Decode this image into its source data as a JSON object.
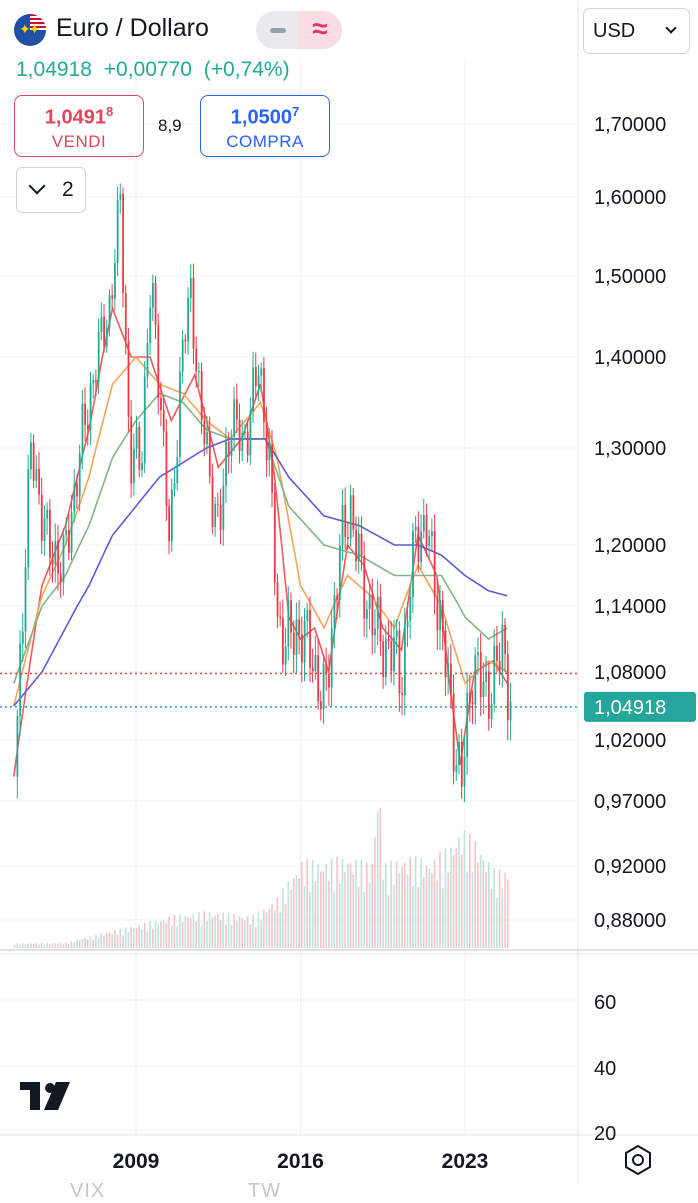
{
  "header": {
    "symbol_icon": "eu-us-flag-icon",
    "title": "Euro / Dollaro",
    "mode_toggle": {
      "left_icon": "line-mode-icon",
      "right_icon": "approx-wave-icon",
      "right_glyph": "≈"
    },
    "quote": {
      "last": "1,04918",
      "change": "+0,00770",
      "change_pct": "(+0,74%)"
    },
    "sell": {
      "price_main": "1,0491",
      "price_sup": "8",
      "label": "VENDI"
    },
    "spread": "8,9",
    "buy": {
      "price_main": "1,0500",
      "price_sup": "7",
      "label": "COMPRA"
    },
    "indicators_counter": "2"
  },
  "currency_select": {
    "value": "USD"
  },
  "colors": {
    "up": "#22ab94",
    "down": "#f23645",
    "ma_red": "#f05a5a",
    "ma_orange": "#f5a55a",
    "ma_green": "#7fb884",
    "ma_blue": "#5c5cd6",
    "last_label_bg": "#26a69a",
    "dotted_red": "#e04646",
    "dotted_teal": "#26a69a"
  },
  "chart_data": {
    "type": "candlestick",
    "pair": "EUR/USD",
    "price_axis_labels": [
      "1,70000",
      "1,60000",
      "1,50000",
      "1,40000",
      "1,30000",
      "1,20000",
      "1,14000",
      "1,08000",
      "1,02000",
      "0,97000",
      "0,92000",
      "0,88000"
    ],
    "price_axis_values": [
      1.7,
      1.6,
      1.5,
      1.4,
      1.3,
      1.2,
      1.14,
      1.08,
      1.02,
      0.97,
      0.92,
      0.88
    ],
    "last_price_label": "1,04918",
    "last_price": 1.04918,
    "ref_price": 1.0787,
    "x_axis_labels": [
      "2009",
      "2016",
      "2023"
    ],
    "x_axis_years": [
      2009,
      2016,
      2023
    ],
    "period": {
      "start": 2003.8,
      "end": 2024.9
    },
    "moving_averages": [
      {
        "color_key": "ma_red",
        "points": [
          [
            2003.8,
            0.99
          ],
          [
            2005,
            1.16
          ],
          [
            2006,
            1.22
          ],
          [
            2007,
            1.32
          ],
          [
            2008,
            1.46
          ],
          [
            2008.8,
            1.4
          ],
          [
            2009.6,
            1.4
          ],
          [
            2010.5,
            1.33
          ],
          [
            2011.5,
            1.38
          ],
          [
            2012.5,
            1.28
          ],
          [
            2013.5,
            1.31
          ],
          [
            2014.3,
            1.37
          ],
          [
            2014.9,
            1.27
          ],
          [
            2015.5,
            1.13
          ],
          [
            2016,
            1.11
          ],
          [
            2016.6,
            1.12
          ],
          [
            2017.2,
            1.08
          ],
          [
            2018,
            1.2
          ],
          [
            2018.7,
            1.18
          ],
          [
            2019.5,
            1.12
          ],
          [
            2020.3,
            1.1
          ],
          [
            2021,
            1.21
          ],
          [
            2021.8,
            1.17
          ],
          [
            2022.4,
            1.06
          ],
          [
            2022.8,
            1.0
          ],
          [
            2023.4,
            1.08
          ],
          [
            2024.2,
            1.09
          ],
          [
            2024.8,
            1.07
          ]
        ]
      },
      {
        "color_key": "ma_orange",
        "points": [
          [
            2003.8,
            1.05
          ],
          [
            2005,
            1.15
          ],
          [
            2006,
            1.2
          ],
          [
            2007,
            1.27
          ],
          [
            2008,
            1.37
          ],
          [
            2009,
            1.4
          ],
          [
            2010,
            1.37
          ],
          [
            2011,
            1.36
          ],
          [
            2012,
            1.33
          ],
          [
            2013,
            1.31
          ],
          [
            2014.3,
            1.35
          ],
          [
            2015,
            1.29
          ],
          [
            2016,
            1.16
          ],
          [
            2017,
            1.12
          ],
          [
            2018,
            1.17
          ],
          [
            2019,
            1.15
          ],
          [
            2020,
            1.12
          ],
          [
            2021,
            1.18
          ],
          [
            2022,
            1.14
          ],
          [
            2023,
            1.07
          ],
          [
            2024,
            1.09
          ],
          [
            2024.8,
            1.08
          ]
        ]
      },
      {
        "color_key": "ma_green",
        "points": [
          [
            2003.8,
            1.07
          ],
          [
            2005,
            1.14
          ],
          [
            2006,
            1.17
          ],
          [
            2007,
            1.22
          ],
          [
            2008,
            1.29
          ],
          [
            2009,
            1.33
          ],
          [
            2010,
            1.36
          ],
          [
            2011,
            1.35
          ],
          [
            2012,
            1.32
          ],
          [
            2013,
            1.31
          ],
          [
            2014.5,
            1.31
          ],
          [
            2015.5,
            1.24
          ],
          [
            2017,
            1.2
          ],
          [
            2018.5,
            1.19
          ],
          [
            2020,
            1.17
          ],
          [
            2021,
            1.17
          ],
          [
            2022,
            1.17
          ],
          [
            2023,
            1.13
          ],
          [
            2024,
            1.11
          ],
          [
            2024.8,
            1.12
          ]
        ]
      },
      {
        "color_key": "ma_blue",
        "points": [
          [
            2003.8,
            1.05
          ],
          [
            2005,
            1.08
          ],
          [
            2006,
            1.12
          ],
          [
            2007,
            1.16
          ],
          [
            2008,
            1.21
          ],
          [
            2009,
            1.24
          ],
          [
            2010,
            1.27
          ],
          [
            2011,
            1.285
          ],
          [
            2012,
            1.3
          ],
          [
            2013,
            1.31
          ],
          [
            2014.5,
            1.31
          ],
          [
            2015.5,
            1.27
          ],
          [
            2017,
            1.23
          ],
          [
            2018.5,
            1.22
          ],
          [
            2020,
            1.2
          ],
          [
            2021,
            1.2
          ],
          [
            2022,
            1.19
          ],
          [
            2023,
            1.17
          ],
          [
            2024,
            1.155
          ],
          [
            2024.8,
            1.15
          ]
        ]
      }
    ],
    "price_path": [
      [
        2003.8,
        0.99
      ],
      [
        2004.5,
        1.3
      ],
      [
        2005.2,
        1.2
      ],
      [
        2005.9,
        1.18
      ],
      [
        2006.6,
        1.3
      ],
      [
        2007.3,
        1.4
      ],
      [
        2007.9,
        1.47
      ],
      [
        2008.3,
        1.6
      ],
      [
        2008.7,
        1.28
      ],
      [
        2009.2,
        1.3
      ],
      [
        2009.6,
        1.49
      ],
      [
        2010,
        1.36
      ],
      [
        2010.4,
        1.19
      ],
      [
        2010.9,
        1.4
      ],
      [
        2011.3,
        1.48
      ],
      [
        2011.7,
        1.34
      ],
      [
        2012,
        1.29
      ],
      [
        2012.5,
        1.21
      ],
      [
        2013,
        1.34
      ],
      [
        2013.5,
        1.3
      ],
      [
        2014.2,
        1.39
      ],
      [
        2014.6,
        1.3
      ],
      [
        2015,
        1.12
      ],
      [
        2015.5,
        1.11
      ],
      [
        2016,
        1.12
      ],
      [
        2016.5,
        1.09
      ],
      [
        2017,
        1.05
      ],
      [
        2017.6,
        1.19
      ],
      [
        2018.1,
        1.24
      ],
      [
        2018.6,
        1.16
      ],
      [
        2019.3,
        1.11
      ],
      [
        2019.8,
        1.1
      ],
      [
        2020.3,
        1.08
      ],
      [
        2020.9,
        1.22
      ],
      [
        2021.4,
        1.21
      ],
      [
        2021.9,
        1.13
      ],
      [
        2022.4,
        1.04
      ],
      [
        2022.8,
        0.98
      ],
      [
        2023.3,
        1.09
      ],
      [
        2023.8,
        1.06
      ],
      [
        2024.3,
        1.08
      ],
      [
        2024.6,
        1.11
      ],
      [
        2024.9,
        1.05
      ]
    ],
    "volume_shape": [
      [
        2003.8,
        0.05
      ],
      [
        2006,
        0.06
      ],
      [
        2007.5,
        0.16
      ],
      [
        2009,
        0.25
      ],
      [
        2010.5,
        0.35
      ],
      [
        2012,
        0.4
      ],
      [
        2014,
        0.35
      ],
      [
        2015,
        0.55
      ],
      [
        2016,
        0.95
      ],
      [
        2017,
        0.95
      ],
      [
        2018,
        1.0
      ],
      [
        2019,
        0.9
      ],
      [
        2019.3,
        1.9
      ],
      [
        2019.5,
        0.9
      ],
      [
        2020.5,
        1.0
      ],
      [
        2021.5,
        0.95
      ],
      [
        2022.3,
        1.1
      ],
      [
        2022.8,
        1.3
      ],
      [
        2023.5,
        1.15
      ],
      [
        2024.2,
        0.85
      ],
      [
        2024.9,
        0.85
      ]
    ],
    "rsi_axis_labels": [
      "60",
      "40",
      "20"
    ],
    "rsi_axis_values": [
      60,
      40,
      20
    ]
  },
  "branding": {
    "logo": "tradingview-logo",
    "logo_text": "17"
  },
  "controls": {
    "settings_icon": "hexagon-settings-icon"
  },
  "bottom_hint": {
    "left": "VIX",
    "right": "TW"
  }
}
